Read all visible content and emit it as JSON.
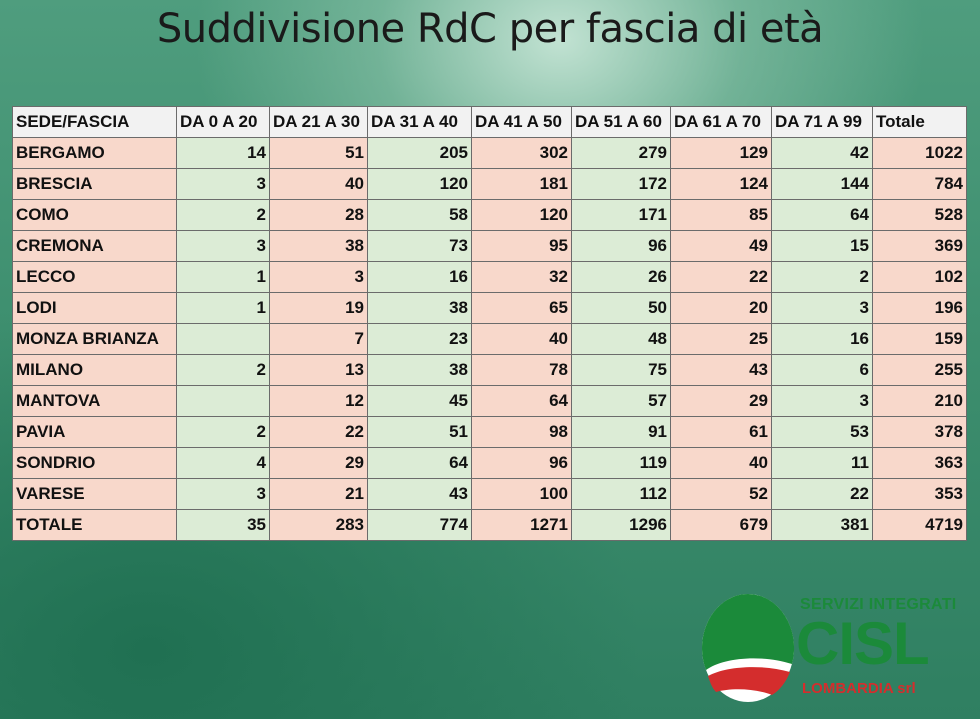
{
  "title": "Suddivisione RdC per fascia di età",
  "table": {
    "headers": [
      "SEDE/FASCIA",
      "DA 0 A 20",
      "DA 21 A 30",
      "DA 31 A 40",
      "DA 41 A 50",
      "DA 51 A 60",
      "DA 61 A 70",
      "DA 71 A 99",
      "Totale"
    ],
    "rows": [
      {
        "sede": "BERGAMO",
        "values": [
          "14",
          "51",
          "205",
          "302",
          "279",
          "129",
          "42",
          "1022"
        ]
      },
      {
        "sede": "BRESCIA",
        "values": [
          "3",
          "40",
          "120",
          "181",
          "172",
          "124",
          "144",
          "784"
        ]
      },
      {
        "sede": "COMO",
        "values": [
          "2",
          "28",
          "58",
          "120",
          "171",
          "85",
          "64",
          "528"
        ]
      },
      {
        "sede": "CREMONA",
        "values": [
          "3",
          "38",
          "73",
          "95",
          "96",
          "49",
          "15",
          "369"
        ]
      },
      {
        "sede": "LECCO",
        "values": [
          "1",
          "3",
          "16",
          "32",
          "26",
          "22",
          "2",
          "102"
        ]
      },
      {
        "sede": "LODI",
        "values": [
          "1",
          "19",
          "38",
          "65",
          "50",
          "20",
          "3",
          "196"
        ]
      },
      {
        "sede": "MONZA BRIANZA",
        "values": [
          "",
          "7",
          "23",
          "40",
          "48",
          "25",
          "16",
          "159"
        ]
      },
      {
        "sede": "MILANO",
        "values": [
          "2",
          "13",
          "38",
          "78",
          "75",
          "43",
          "6",
          "255"
        ]
      },
      {
        "sede": "MANTOVA",
        "values": [
          "",
          "12",
          "45",
          "64",
          "57",
          "29",
          "3",
          "210"
        ]
      },
      {
        "sede": "PAVIA",
        "values": [
          "2",
          "22",
          "51",
          "98",
          "91",
          "61",
          "53",
          "378"
        ]
      },
      {
        "sede": "SONDRIO",
        "values": [
          "4",
          "29",
          "64",
          "96",
          "119",
          "40",
          "11",
          "363"
        ]
      },
      {
        "sede": "VARESE",
        "values": [
          "3",
          "21",
          "43",
          "100",
          "112",
          "52",
          "22",
          "353"
        ]
      },
      {
        "sede": "TOTALE",
        "values": [
          "35",
          "283",
          "774",
          "1271",
          "1296",
          "679",
          "381",
          "4719"
        ]
      }
    ]
  },
  "logo": {
    "top_text": "SERVIZI INTEGRATI",
    "main_text": "CISL",
    "bottom_text": "LOMBARDIA srl"
  },
  "colors": {
    "row_pink": "#f8d8cb",
    "row_green": "#dcecd6",
    "logo_green": "#1b8a3a",
    "logo_red": "#d42d2d"
  }
}
